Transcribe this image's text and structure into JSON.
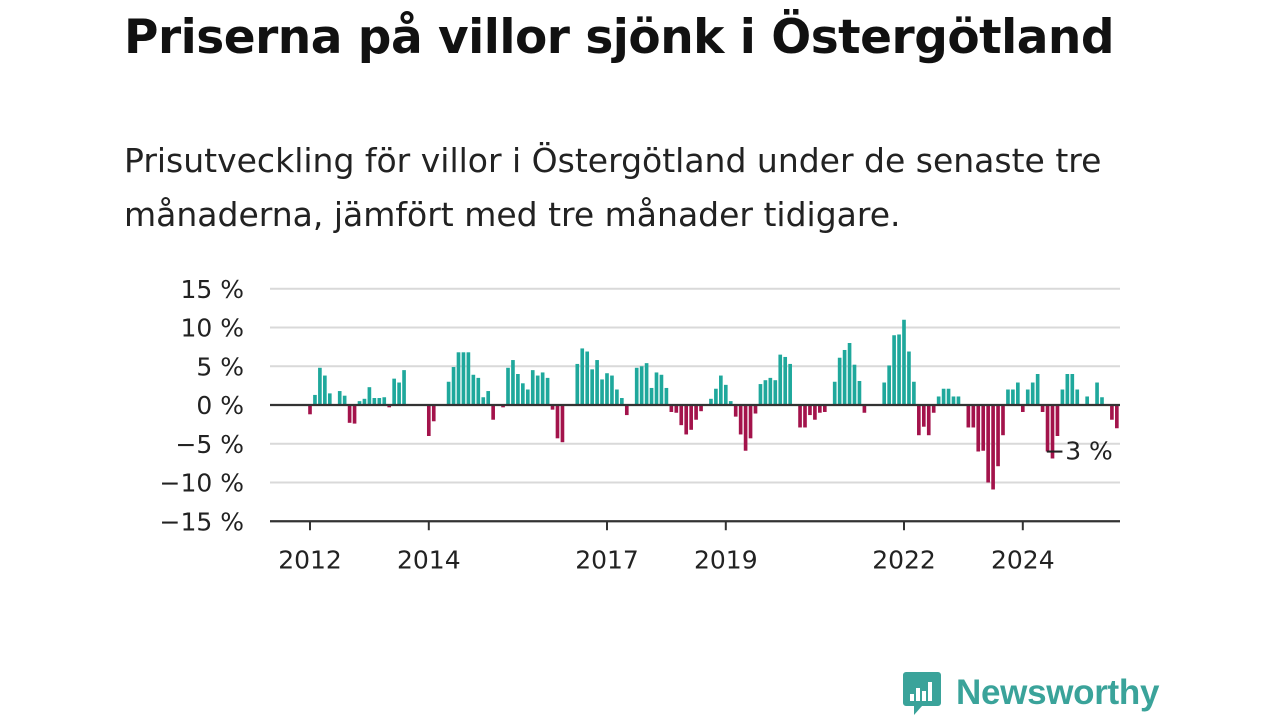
{
  "header": {
    "title": "Priserna på villor sjönk i Östergötland",
    "subtitle": "Prisutveckling för villor i Östergötland under de senaste tre månaderna, jämfört med tre månader tidigare."
  },
  "brand": {
    "name": "Newsworthy",
    "icon": "newsworthy-logo-icon",
    "color": "#3aa39a"
  },
  "colors": {
    "positive": "#1fa89c",
    "negative": "#a3134b",
    "grid": "#d9d9d9",
    "axis": "#333333"
  },
  "chart_data": {
    "type": "bar",
    "title": "Priserna på villor sjönk i Östergötland",
    "subtitle": "Prisutveckling för villor i Östergötland under de senaste tre månaderna, jämfört med tre månader tidigare.",
    "unit": "%",
    "ylim": [
      -15,
      15
    ],
    "y_ticks": [
      15,
      10,
      5,
      0,
      -5,
      -10,
      -15
    ],
    "y_tick_labels": [
      "15 %",
      "10 %",
      "5 %",
      "0 %",
      "−5 %",
      "−10 %",
      "−15 %"
    ],
    "x_start": "2012-01",
    "x_tick_labels": [
      "2012",
      "2014",
      "2017",
      "2019",
      "2022",
      "2024"
    ],
    "x_tick_months": [
      "2012-01",
      "2014-01",
      "2017-01",
      "2019-01",
      "2022-01",
      "2024-01"
    ],
    "grid": true,
    "annotation": {
      "text": "−3 %",
      "month": "2024-12",
      "value": -3
    },
    "values": [
      -1.2,
      1.3,
      4.8,
      3.8,
      1.5,
      0,
      1.8,
      1.2,
      -2.3,
      -2.4,
      0.5,
      0.8,
      2.3,
      0.9,
      0.9,
      1.0,
      -0.3,
      3.4,
      2.9,
      4.5,
      0,
      0,
      0,
      0,
      -4.0,
      -2.1,
      0,
      0,
      3.0,
      4.9,
      6.8,
      6.8,
      6.8,
      3.9,
      3.5,
      1.0,
      1.8,
      -1.9,
      0,
      -0.3,
      4.8,
      5.8,
      4.0,
      2.8,
      2.0,
      4.5,
      3.8,
      4.2,
      3.5,
      -0.6,
      -4.3,
      -4.8,
      0,
      0,
      5.3,
      7.3,
      6.9,
      4.6,
      5.8,
      3.3,
      4.1,
      3.8,
      2.0,
      0.9,
      -1.3,
      0,
      4.8,
      5.0,
      5.4,
      2.2,
      4.2,
      3.9,
      2.2,
      -0.9,
      -1.0,
      -2.6,
      -3.8,
      -3.2,
      -1.9,
      -0.8,
      0,
      0.8,
      2.1,
      3.8,
      2.6,
      0.5,
      -1.5,
      -3.8,
      -5.9,
      -4.3,
      -1.1,
      2.7,
      3.2,
      3.5,
      3.2,
      6.5,
      6.2,
      5.3,
      0,
      -2.9,
      -2.9,
      -1.3,
      -1.9,
      -1.0,
      -0.9,
      0,
      3.0,
      6.1,
      7.1,
      8.0,
      5.2,
      3.1,
      -1.0,
      0,
      0,
      0,
      2.9,
      5.1,
      9.0,
      9.1,
      11.0,
      6.9,
      3.0,
      -3.9,
      -2.8,
      -3.9,
      -1.0,
      1.1,
      2.1,
      2.1,
      1.1,
      1.1,
      0,
      -2.9,
      -2.9,
      -6.0,
      -5.9,
      -10.0,
      -10.9,
      -7.9,
      -3.9,
      2.0,
      2.0,
      2.9,
      -0.9,
      2.0,
      2.9,
      4.0,
      -0.9,
      -6.0,
      -6.9,
      -4.0,
      2.0,
      4.0,
      4.0,
      2.0,
      0,
      1.1,
      0,
      2.9,
      1.0,
      0,
      -1.9,
      -3.0
    ]
  }
}
